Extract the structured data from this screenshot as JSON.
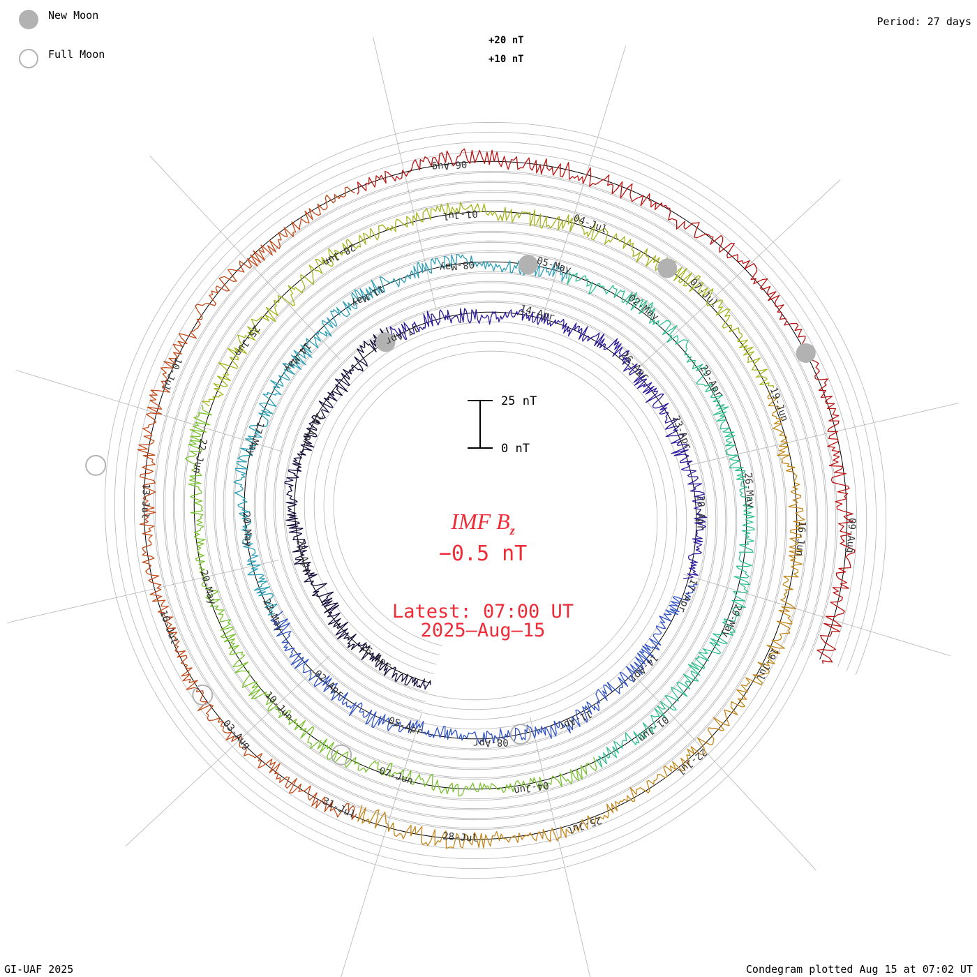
{
  "legend": {
    "new_moon": "New Moon",
    "full_moon": "Full Moon"
  },
  "period_label": "Period: 27 days",
  "footer_left": "GI-UAF 2025",
  "footer_right": "Condegram plotted Aug 15 at 07:02 UT",
  "reference_labels": [
    "+20 nT",
    "+10 nT"
  ],
  "scale_bar": {
    "top_label": "25 nT",
    "bottom_label": "0 nT"
  },
  "center": {
    "quantity": "IMF",
    "quantity_sym": "B",
    "quantity_sub": "z",
    "value": "−0.5 nT",
    "latest_label": "Latest: 07:00 UT",
    "latest_date": "2025–Aug–15"
  },
  "colors": {
    "accent_red": "#ee2b36",
    "moon_gray": "#b2b2b2",
    "grid_gray": "#b4b4b4",
    "turn_colors": [
      "#140a3a",
      "#2a1a9c",
      "#2f52c6",
      "#2c9fb6",
      "#2fbf8c",
      "#79c22e",
      "#a5b51c",
      "#c2861a",
      "#c2491a",
      "#b81312"
    ]
  },
  "chart_data": {
    "type": "condegram",
    "title": "IMF Bz",
    "period_days": 27,
    "units": "nT",
    "latest_value": -0.5,
    "latest_time": "2025-Aug-15 07:00 UT",
    "turns": [
      {
        "index": 0,
        "date_labels": [
          "26-Apr",
          "23-Apr",
          "20-Apr",
          "17-Apr",
          "14-Apr"
        ]
      },
      {
        "index": 1,
        "date_labels": [
          "26-Apr",
          "23-Apr",
          "20-Apr",
          "17-Apr",
          "14-Apr",
          "11-Apr",
          "08-Apr",
          "05-Apr",
          "02-Apr"
        ]
      },
      {
        "index": 2,
        "date_labels": [
          "23-May",
          "20-May",
          "17-May",
          "14-May",
          "11-May",
          "08-May",
          "05-May",
          "02-May",
          "29-Apr"
        ]
      },
      {
        "index": 3,
        "date_labels": [
          "26-May",
          "29-May",
          "01-Jun",
          "04-Jun",
          "07-Jun",
          "10-Jun",
          "20-May"
        ]
      },
      {
        "index": 4,
        "date_labels": [
          "22-Jun",
          "25-Jun",
          "28-Jun",
          "01-Jul",
          "04-Jul",
          "07-Jul",
          "19-Jun",
          "16-Jun"
        ]
      },
      {
        "index": 5,
        "date_labels": [
          "19-Jul",
          "22-Jul",
          "25-Jul",
          "28-Jul",
          "31-Jul",
          "03-Aug",
          "16-Jul",
          "13-Jul",
          "10-Jul"
        ]
      },
      {
        "index": 6,
        "date_labels": [
          "06-Aug",
          "09-Aug"
        ]
      }
    ],
    "scale_bar_nT": [
      0,
      25
    ],
    "reference_rings_nT": [
      10,
      20
    ],
    "new_moon_dates": [
      "2025-04-27",
      "2025-05-27",
      "2025-06-25",
      "2025-07-24"
    ],
    "full_moon_dates": [
      "2025-05-12",
      "2025-06-11",
      "2025-07-10",
      "2025-08-09"
    ]
  }
}
